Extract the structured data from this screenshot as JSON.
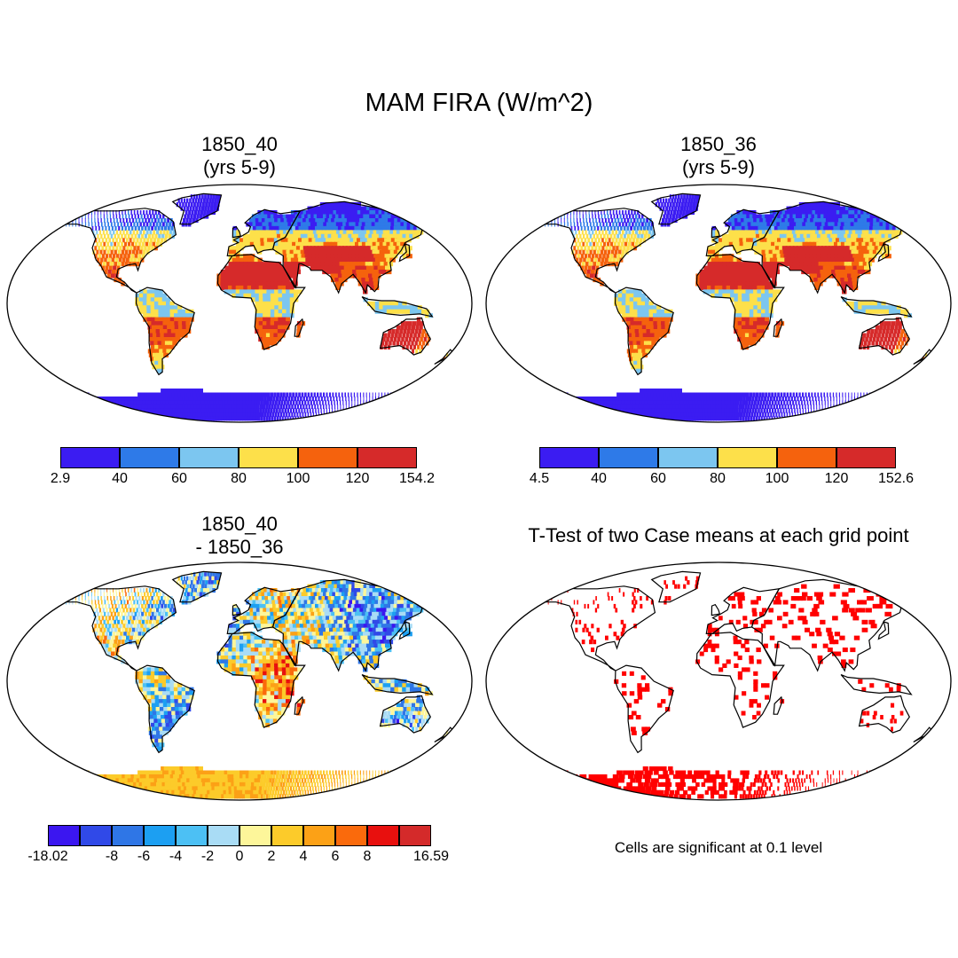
{
  "title": "MAM FIRA (W/m^2)",
  "panels": [
    {
      "id": "p1",
      "title_line1": "1850_40",
      "title_line2": "(yrs 5-9)",
      "type": "field"
    },
    {
      "id": "p2",
      "title_line1": "1850_36",
      "title_line2": "(yrs 5-9)",
      "type": "field"
    },
    {
      "id": "p3",
      "title_line1": "1850_40",
      "title_line2": "- 1850_36",
      "type": "difference"
    },
    {
      "id": "p4",
      "title_line1": "T-Test of two Case means at each grid point",
      "title_line2": "",
      "type": "significance"
    }
  ],
  "colorbars": {
    "cb1": {
      "colors": [
        "#3b1cf2",
        "#2e7ae8",
        "#7cc6f0",
        "#fde04a",
        "#f5620d",
        "#d62a2a"
      ],
      "labels": [
        "2.9",
        "40",
        "60",
        "80",
        "100",
        "120",
        "154.2"
      ]
    },
    "cb2": {
      "colors": [
        "#3b1cf2",
        "#2e7ae8",
        "#7cc6f0",
        "#fde04a",
        "#f5620d",
        "#d62a2a"
      ],
      "labels": [
        "4.5",
        "40",
        "60",
        "80",
        "100",
        "120",
        "152.6"
      ]
    },
    "cb3": {
      "colors": [
        "#3b16f0",
        "#3049e8",
        "#2f76e6",
        "#1c9ff2",
        "#4cc0f4",
        "#a9dcf5",
        "#fdf69a",
        "#fccb2a",
        "#fca116",
        "#fa6a0c",
        "#e8100e",
        "#d42a2a"
      ],
      "labels": [
        "-18.02",
        "",
        "-8",
        "-6",
        "-4",
        "-2",
        "0",
        "2",
        "4",
        "6",
        "8",
        "",
        "16.59"
      ]
    }
  },
  "significance_note": "Cells are significant at 0.1 level",
  "significance_color": "#ff0000"
}
